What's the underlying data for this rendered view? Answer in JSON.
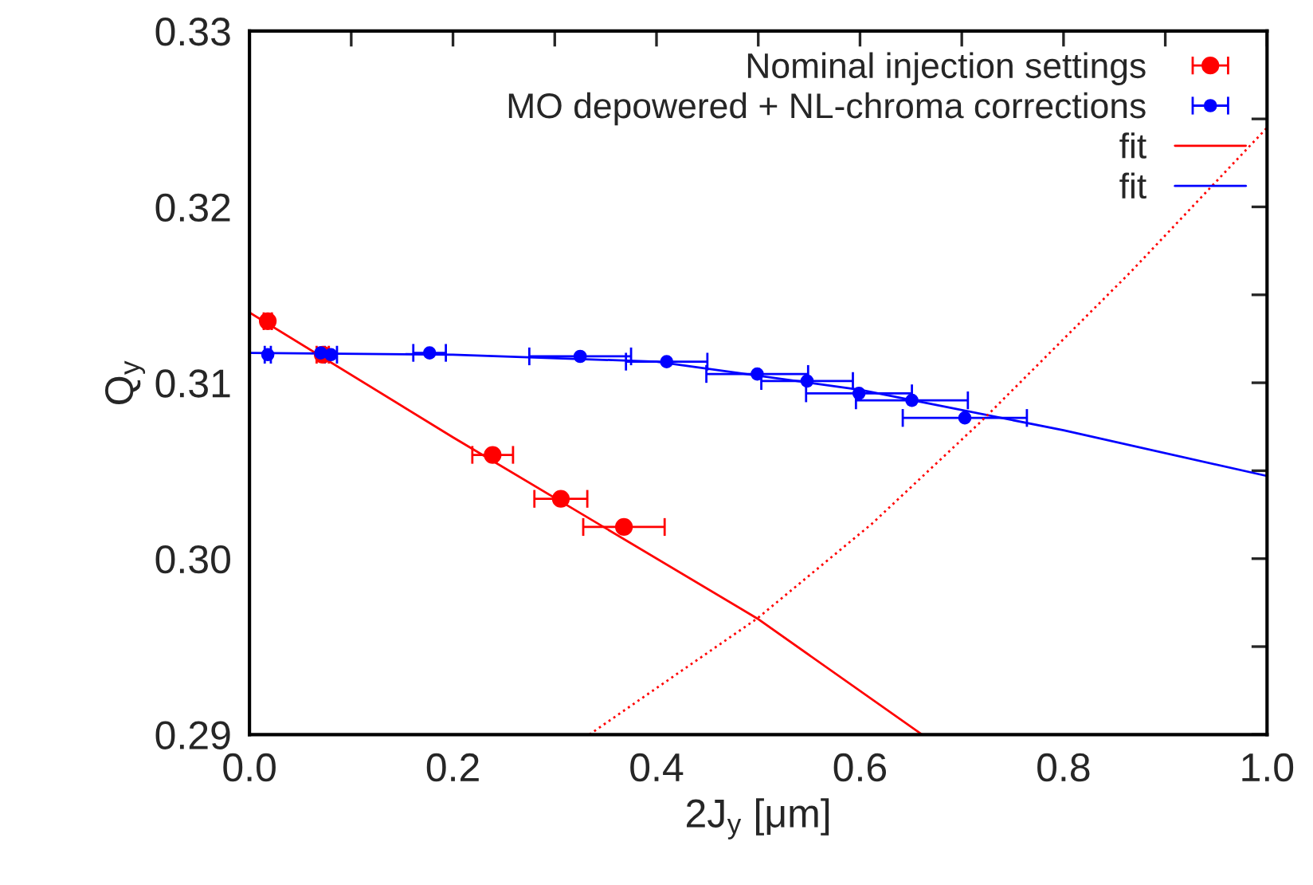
{
  "chart_data": {
    "type": "scatter",
    "xlabel": "2J$_{y}$ [μm]",
    "ylabel": "Q$_{y}$",
    "xlim": [
      0.0,
      1.0
    ],
    "ylim": [
      0.29,
      0.33
    ],
    "xticks": [
      {
        "value": 0.0,
        "label": "0.0"
      },
      {
        "value": 0.1,
        "label": null
      },
      {
        "value": 0.2,
        "label": "0.2"
      },
      {
        "value": 0.3,
        "label": null
      },
      {
        "value": 0.4,
        "label": "0.4"
      },
      {
        "value": 0.5,
        "label": null
      },
      {
        "value": 0.6,
        "label": "0.6"
      },
      {
        "value": 0.7,
        "label": null
      },
      {
        "value": 0.8,
        "label": "0.8"
      },
      {
        "value": 0.9,
        "label": null
      },
      {
        "value": 1.0,
        "label": "1.0"
      }
    ],
    "yticks": [
      {
        "value": 0.29,
        "label": "0.29"
      },
      {
        "value": 0.295,
        "label": null
      },
      {
        "value": 0.3,
        "label": "0.30"
      },
      {
        "value": 0.305,
        "label": null
      },
      {
        "value": 0.31,
        "label": "0.31"
      },
      {
        "value": 0.315,
        "label": null
      },
      {
        "value": 0.32,
        "label": "0.32"
      },
      {
        "value": 0.325,
        "label": null
      },
      {
        "value": 0.33,
        "label": "0.33"
      }
    ],
    "legend": "top right",
    "grid": false,
    "marker": "circle",
    "series": [
      {
        "name": "Nominal injection settings",
        "color": "#ff0000",
        "x": [
          0.018,
          0.072,
          0.239,
          0.306,
          0.368
        ],
        "values": [
          0.3135,
          0.3116,
          0.3059,
          0.3034,
          0.3018
        ],
        "xerrors": [
          0.004,
          0.006,
          0.02,
          0.026,
          0.04
        ]
      },
      {
        "name": "MO depowered + NL-chroma corrections",
        "color": "#0000ff",
        "x": [
          0.018,
          0.07,
          0.08,
          0.177,
          0.325,
          0.41,
          0.499,
          0.548,
          0.599,
          0.651,
          0.703
        ],
        "values": [
          0.3116,
          0.3117,
          0.3116,
          0.3117,
          0.3115,
          0.3112,
          0.3105,
          0.3101,
          0.3094,
          0.309,
          0.308
        ],
        "xerrors": [
          0.003,
          null,
          0.006,
          0.016,
          0.05,
          0.04,
          0.05,
          0.045,
          0.052,
          0.055,
          0.061
        ]
      },
      {
        "type": "line",
        "name": "fit",
        "color": "#ff0000",
        "line_style": "solid",
        "marker": "none",
        "x": [
          0.0,
          0.2,
          0.499,
          0.661
        ],
        "values": [
          0.314,
          0.3069,
          0.2966,
          0.29
        ]
      },
      {
        "type": "line",
        "name": "fit",
        "color": "#0000ff",
        "line_style": "solid",
        "marker": "none",
        "x": [
          0.0,
          0.2,
          0.4,
          0.6,
          0.8,
          1.0
        ],
        "values": [
          0.3117,
          0.3116,
          0.3112,
          0.3096,
          0.3073,
          0.3047
        ]
      },
      {
        "type": "line",
        "color": "#ff0000",
        "line_style": "dotted",
        "marker": "none",
        "x": [
          0.334,
          0.499,
          0.612,
          0.719,
          0.866,
          1.0
        ],
        "values": [
          0.29,
          0.2966,
          0.302,
          0.3078,
          0.3163,
          0.3245
        ]
      }
    ]
  }
}
